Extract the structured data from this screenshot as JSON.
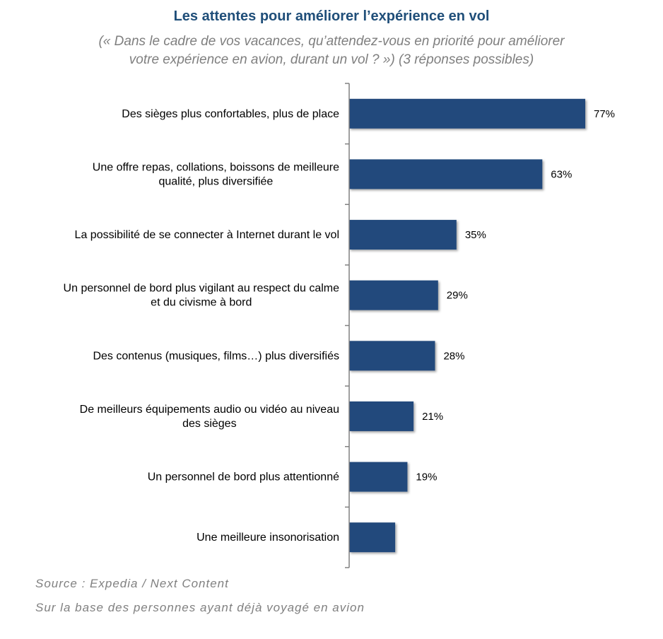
{
  "chart_data": {
    "type": "bar",
    "orientation": "horizontal",
    "title": "Les attentes pour améliorer l’expérience en vol",
    "subtitle": [
      "(« Dans le cadre de vos vacances, qu’attendez-vous en priorité pour améliorer",
      "votre expérience en avion, durant un vol ? ») (3 réponses possibles)"
    ],
    "categories": [
      [
        "Des sièges plus confortables, plus de place"
      ],
      [
        "Une offre repas, collations, boissons de meilleure",
        "qualité, plus diversifiée"
      ],
      [
        "La possibilité de se connecter à Internet durant le vol"
      ],
      [
        "Un personnel de bord plus vigilant au respect du calme",
        "et du civisme à bord"
      ],
      [
        "Des contenus (musiques, films…) plus diversifiés"
      ],
      [
        "De meilleurs équipements audio ou vidéo au niveau",
        "des sièges"
      ],
      [
        "Un personnel de bord plus attentionné"
      ],
      [
        "Une meilleure insonorisation"
      ]
    ],
    "values": [
      77,
      63,
      35,
      29,
      28,
      21,
      19,
      15
    ],
    "value_labels": [
      "77%",
      "63%",
      "35%",
      "29%",
      "28%",
      "21%",
      "19%",
      ""
    ],
    "unit": "%",
    "xlim": [
      0,
      77
    ],
    "grid": false,
    "legend": "none",
    "bar_color": "#234A7B"
  },
  "footnotes": {
    "source": "Source : Expedia / Next Content",
    "base": "Sur la base des personnes ayant déjà voyagé en avion"
  }
}
